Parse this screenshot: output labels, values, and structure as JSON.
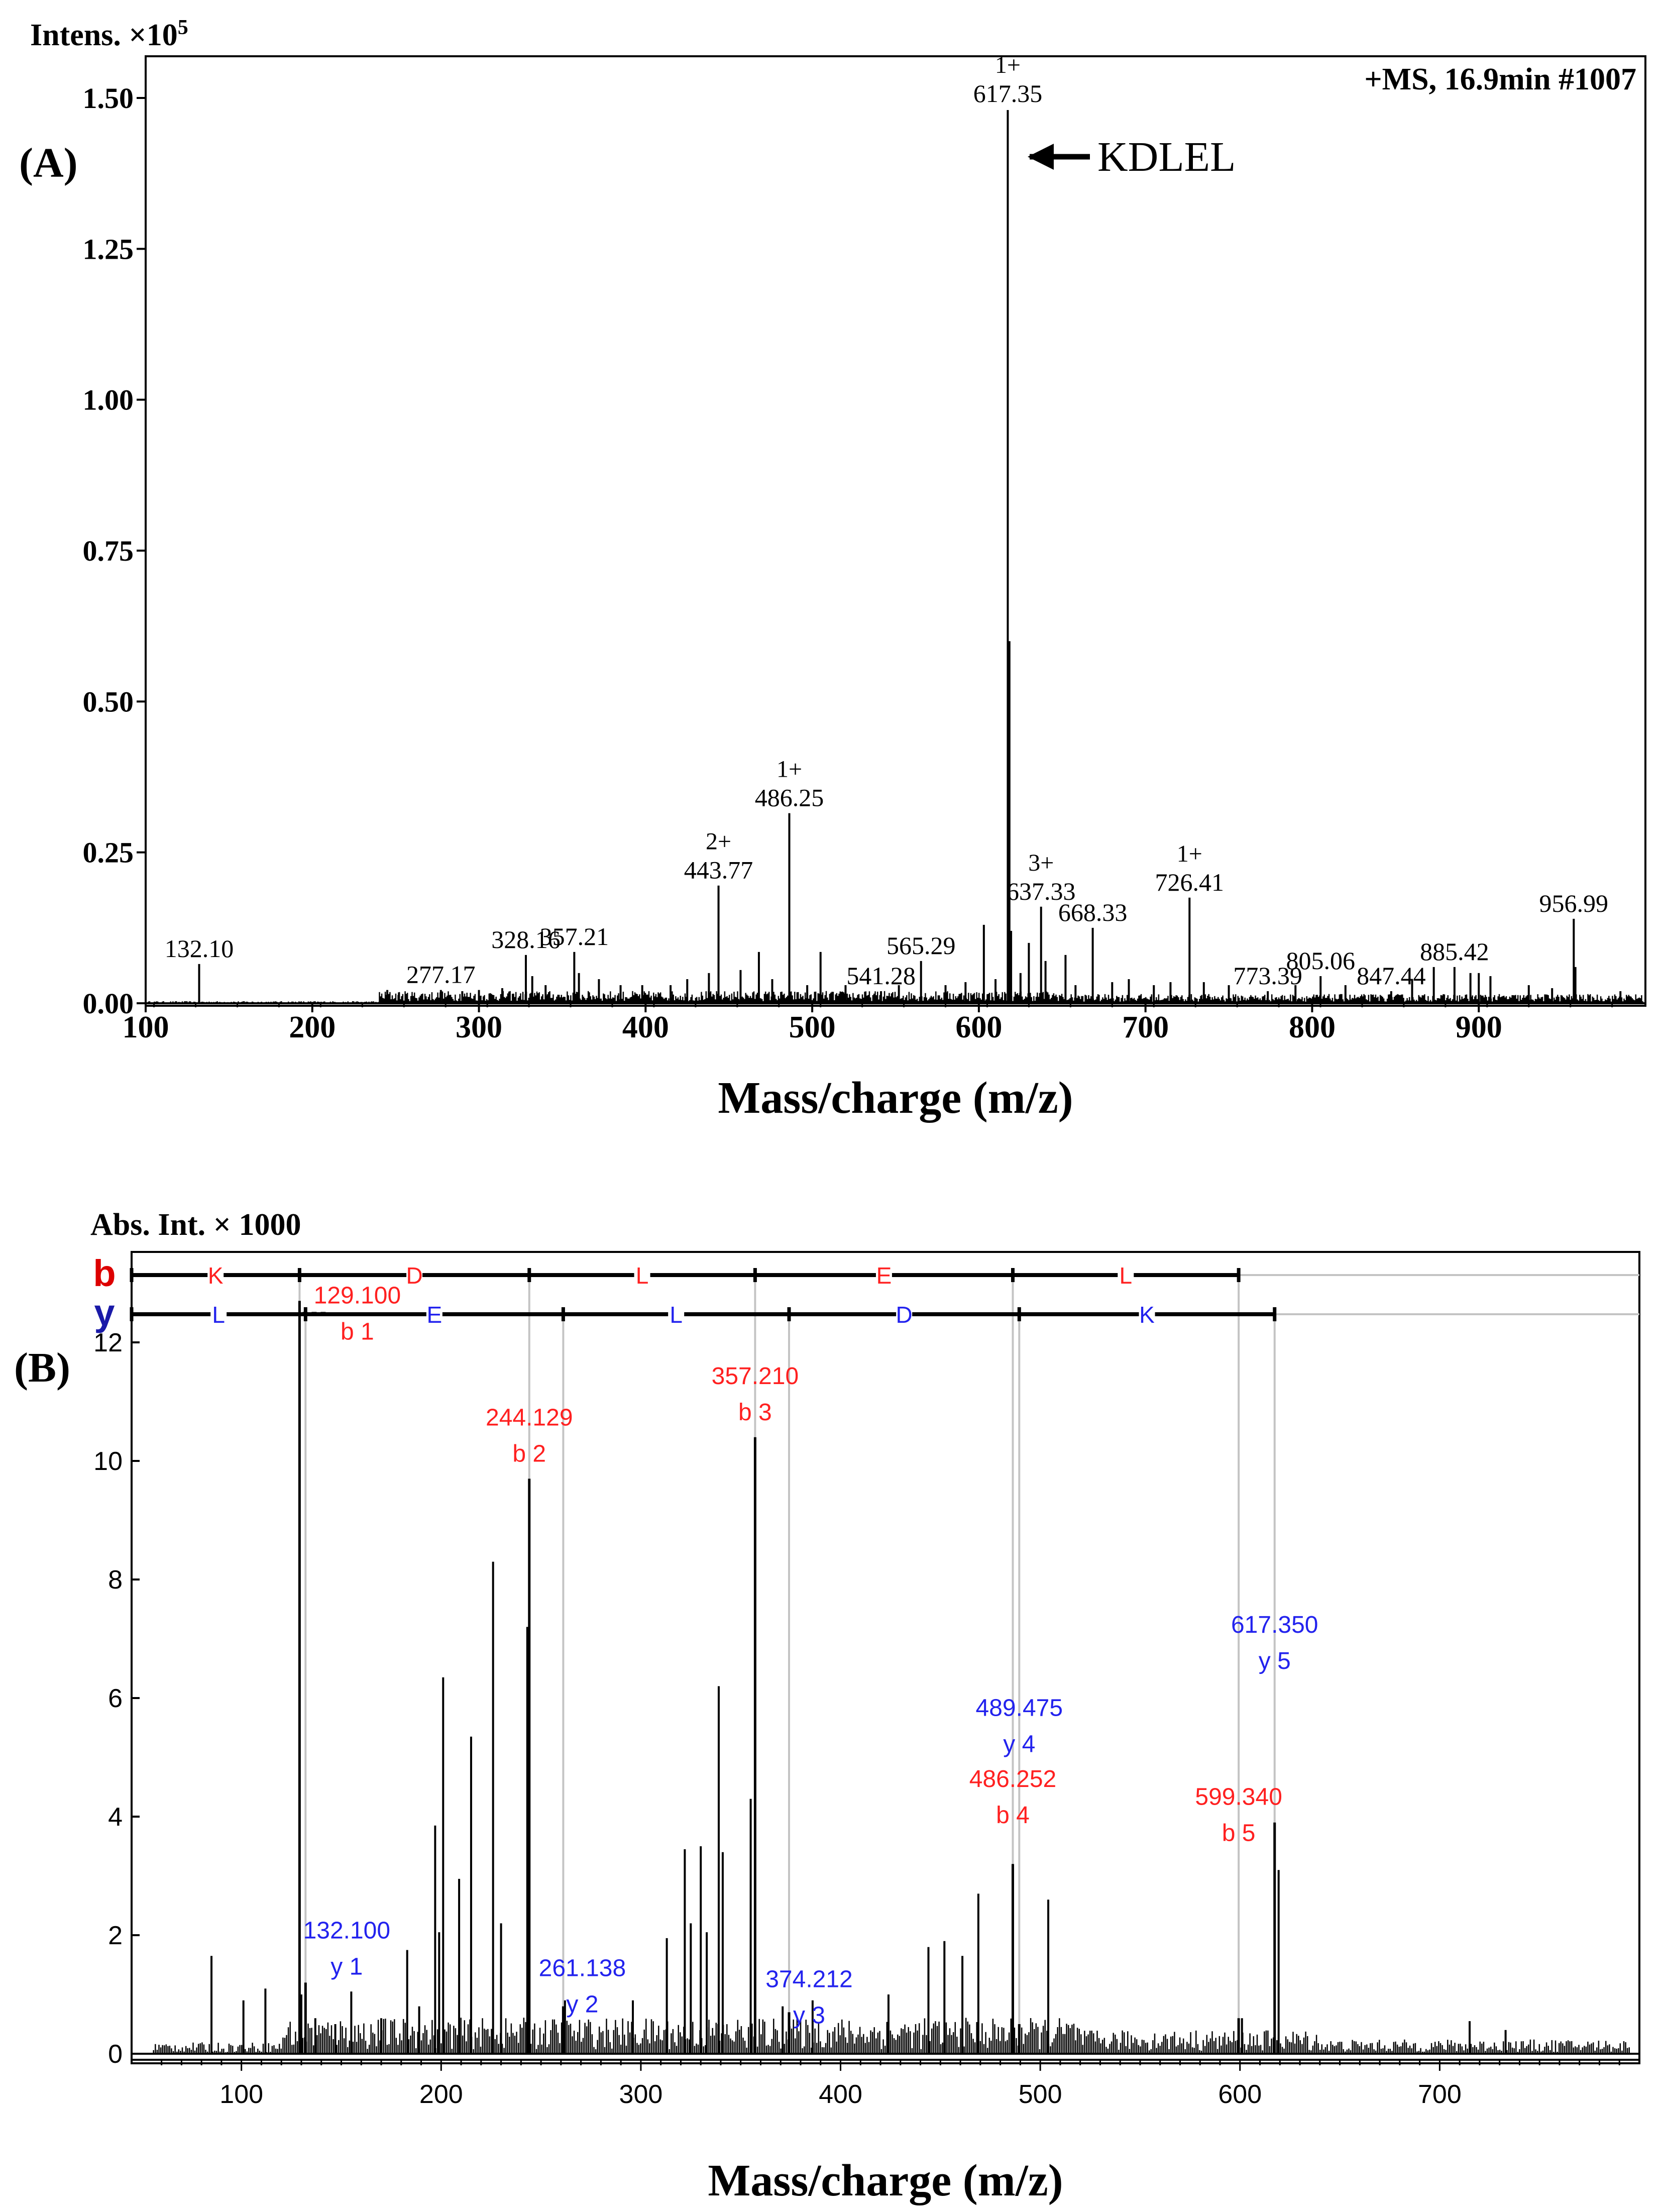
{
  "colors": {
    "black": "#000000",
    "red": "#ff2020",
    "blue": "#2222ee",
    "ladder_b": "#dd0000",
    "ladder_y": "#1a1aa8",
    "guide": "#c4c4c4"
  },
  "chart_data": [
    {
      "type": "line",
      "panel_label": "(A)",
      "title": "+MS, 16.9min #1007",
      "ylabel": "Intens. ×10",
      "ylabel_exponent": "5",
      "xlabel": "Mass/charge (m/z)",
      "xlim": [
        100,
        1000
      ],
      "ylim": [
        0,
        1.5
      ],
      "xticks": [
        "100",
        "200",
        "300",
        "400",
        "500",
        "600",
        "700",
        "800",
        "900"
      ],
      "yticks": [
        "0.00",
        "0.25",
        "0.50",
        "0.75",
        "1.00",
        "1.25",
        "1.50"
      ],
      "annotation": {
        "text": "KDLEL",
        "points_to": 617.35
      },
      "peak_labels": [
        {
          "mz": 132.1,
          "y": 0.065,
          "label": "132.10",
          "charge": ""
        },
        {
          "mz": 277.17,
          "y": 0.022,
          "label": "277.17",
          "charge": ""
        },
        {
          "mz": 328.16,
          "y": 0.08,
          "label": "328.16",
          "charge": ""
        },
        {
          "mz": 357.21,
          "y": 0.085,
          "label": "357.21",
          "charge": ""
        },
        {
          "mz": 443.77,
          "y": 0.195,
          "label": "443.77",
          "charge": "2+"
        },
        {
          "mz": 486.25,
          "y": 0.315,
          "label": "486.25",
          "charge": "1+"
        },
        {
          "mz": 541.28,
          "y": 0.02,
          "label": "541.28",
          "charge": ""
        },
        {
          "mz": 565.29,
          "y": 0.07,
          "label": "565.29",
          "charge": ""
        },
        {
          "mz": 617.35,
          "y": 1.48,
          "label": "617.35",
          "charge": "1+"
        },
        {
          "mz": 637.33,
          "y": 0.16,
          "label": "637.33",
          "charge": "3+"
        },
        {
          "mz": 668.33,
          "y": 0.125,
          "label": "668.33",
          "charge": ""
        },
        {
          "mz": 726.41,
          "y": 0.175,
          "label": "726.41",
          "charge": "1+"
        },
        {
          "mz": 773.39,
          "y": 0.02,
          "label": "773.39",
          "charge": ""
        },
        {
          "mz": 805.06,
          "y": 0.045,
          "label": "805.06",
          "charge": ""
        },
        {
          "mz": 847.44,
          "y": 0.02,
          "label": "847.44",
          "charge": ""
        },
        {
          "mz": 885.42,
          "y": 0.06,
          "label": "885.42",
          "charge": ""
        },
        {
          "mz": 956.99,
          "y": 0.14,
          "label": "956.99",
          "charge": ""
        }
      ],
      "peaks": [
        [
          132.1,
          0.065
        ],
        [
          245,
          0.022
        ],
        [
          252,
          0.018
        ],
        [
          277.17,
          0.022
        ],
        [
          290,
          0.02
        ],
        [
          300,
          0.022
        ],
        [
          314,
          0.025
        ],
        [
          328.16,
          0.08
        ],
        [
          332,
          0.045
        ],
        [
          340,
          0.03
        ],
        [
          357.21,
          0.085
        ],
        [
          360,
          0.05
        ],
        [
          372,
          0.04
        ],
        [
          385,
          0.03
        ],
        [
          398,
          0.03
        ],
        [
          415,
          0.03
        ],
        [
          425,
          0.04
        ],
        [
          438,
          0.05
        ],
        [
          443.77,
          0.195
        ],
        [
          457,
          0.055
        ],
        [
          468,
          0.085
        ],
        [
          476,
          0.04
        ],
        [
          486.25,
          0.315
        ],
        [
          497,
          0.03
        ],
        [
          505,
          0.085
        ],
        [
          520,
          0.03
        ],
        [
          541.28,
          0.02
        ],
        [
          552,
          0.03
        ],
        [
          565.29,
          0.07
        ],
        [
          580,
          0.03
        ],
        [
          592,
          0.035
        ],
        [
          603,
          0.13
        ],
        [
          610,
          0.04
        ],
        [
          617.35,
          1.48
        ],
        [
          618.35,
          0.6
        ],
        [
          619.35,
          0.12
        ],
        [
          625,
          0.05
        ],
        [
          630,
          0.1
        ],
        [
          637.33,
          0.16
        ],
        [
          640,
          0.07
        ],
        [
          652,
          0.08
        ],
        [
          658,
          0.03
        ],
        [
          668.33,
          0.125
        ],
        [
          680,
          0.035
        ],
        [
          690,
          0.04
        ],
        [
          705,
          0.03
        ],
        [
          715,
          0.035
        ],
        [
          726.41,
          0.175
        ],
        [
          735,
          0.035
        ],
        [
          750,
          0.03
        ],
        [
          773.39,
          0.02
        ],
        [
          790,
          0.03
        ],
        [
          805.06,
          0.045
        ],
        [
          820,
          0.03
        ],
        [
          847.44,
          0.02
        ],
        [
          860,
          0.04
        ],
        [
          873,
          0.06
        ],
        [
          885.42,
          0.06
        ],
        [
          895,
          0.05
        ],
        [
          900,
          0.05
        ],
        [
          907,
          0.045
        ],
        [
          930,
          0.03
        ],
        [
          944,
          0.025
        ],
        [
          956.99,
          0.14
        ],
        [
          958,
          0.06
        ],
        [
          985,
          0.02
        ]
      ]
    },
    {
      "type": "line",
      "panel_label": "(B)",
      "ylabel": "Abs. Int. × 1000",
      "xlabel": "Mass/charge (m/z)",
      "xlim": [
        45,
        800
      ],
      "ylim": [
        0,
        13.5
      ],
      "xticks": [
        "100",
        "200",
        "300",
        "400",
        "500",
        "600",
        "700"
      ],
      "yticks": [
        "0",
        "2",
        "4",
        "6",
        "8",
        "10",
        "12"
      ],
      "b_ladder": {
        "letter": "b",
        "breaks": [
          45,
          129.1,
          244.129,
          357.21,
          486.252,
          599.34
        ],
        "residues": [
          "K",
          "D",
          "L",
          "E",
          "L"
        ]
      },
      "y_ladder": {
        "letter": "y",
        "breaks": [
          45,
          132.1,
          261.138,
          374.212,
          489.475,
          617.35
        ],
        "residues": [
          "L",
          "E",
          "L",
          "D",
          "K"
        ]
      },
      "fragment_ions": [
        {
          "series": "b",
          "mz": 129.1,
          "y": 12.7,
          "label": "129.100",
          "ion": "b 1"
        },
        {
          "series": "b",
          "mz": 244.129,
          "y": 9.7,
          "label": "244.129",
          "ion": "b 2"
        },
        {
          "series": "b",
          "mz": 357.21,
          "y": 10.4,
          "label": "357.210",
          "ion": "b 3"
        },
        {
          "series": "b",
          "mz": 486.252,
          "y": 3.2,
          "label": "486.252",
          "ion": "b 4"
        },
        {
          "series": "b",
          "mz": 599.34,
          "y": 0.6,
          "label": "599.340",
          "ion": "b 5"
        },
        {
          "series": "y",
          "mz": 132.1,
          "y": 1.2,
          "label": "132.100",
          "ion": "y 1"
        },
        {
          "series": "y",
          "mz": 261.138,
          "y": 0.8,
          "label": "261.138",
          "ion": "y 2"
        },
        {
          "series": "y",
          "mz": 374.212,
          "y": 0.7,
          "label": "374.212",
          "ion": "y 3"
        },
        {
          "series": "y",
          "mz": 489.475,
          "y": 0.5,
          "label": "489.475",
          "ion": "y 4"
        },
        {
          "series": "y",
          "mz": 617.35,
          "y": 3.9,
          "label": "617.350",
          "ion": "y 5"
        }
      ],
      "peaks": [
        [
          85,
          1.65
        ],
        [
          101,
          0.9
        ],
        [
          112,
          1.1
        ],
        [
          130,
          1.0
        ],
        [
          137,
          0.6
        ],
        [
          147,
          0.5
        ],
        [
          155,
          1.05
        ],
        [
          170,
          0.6
        ],
        [
          183,
          1.75
        ],
        [
          189,
          0.8
        ],
        [
          197,
          3.85
        ],
        [
          199,
          2.05
        ],
        [
          201,
          6.35
        ],
        [
          209,
          2.95
        ],
        [
          215,
          5.35
        ],
        [
          226,
          8.3
        ],
        [
          230,
          2.2
        ],
        [
          243.129,
          7.2
        ],
        [
          262,
          0.9
        ],
        [
          296,
          0.9
        ],
        [
          313,
          1.95
        ],
        [
          322,
          3.45
        ],
        [
          325,
          2.2
        ],
        [
          330,
          3.5
        ],
        [
          333,
          2.05
        ],
        [
          339,
          6.2
        ],
        [
          341,
          3.4
        ],
        [
          355,
          4.3
        ],
        [
          371,
          0.8
        ],
        [
          386,
          0.9
        ],
        [
          424,
          1.0
        ],
        [
          444,
          1.8
        ],
        [
          452,
          1.9
        ],
        [
          461,
          1.65
        ],
        [
          469,
          2.7
        ],
        [
          486.252,
          3.2
        ],
        [
          504,
          2.6
        ],
        [
          601,
          0.6
        ],
        [
          619.35,
          3.1
        ],
        [
          715,
          0.55
        ],
        [
          733,
          0.4
        ]
      ]
    }
  ]
}
